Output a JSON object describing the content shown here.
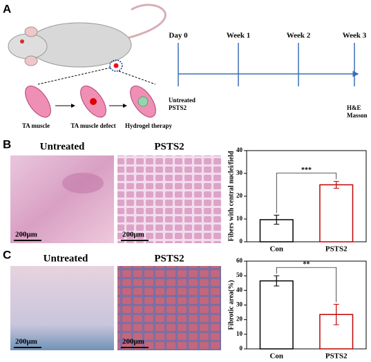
{
  "panels": {
    "a": "A",
    "b": "B",
    "c": "C"
  },
  "schematic": {
    "labels": [
      "TA muscle",
      "TA muscle defect",
      "Hydrogel therapy"
    ]
  },
  "timeline": {
    "points": [
      "Day 0",
      "Week 1",
      "Week 2",
      "Week 3"
    ],
    "start_labels": [
      "Untreated",
      "PSTS2"
    ],
    "end_labels": [
      "H&E",
      "Masson"
    ]
  },
  "images": {
    "b": [
      {
        "title": "Untreated",
        "scale": "200μm"
      },
      {
        "title": "PSTS2",
        "scale": "200μm"
      }
    ],
    "c": [
      {
        "title": "Untreated",
        "scale": "200μm"
      },
      {
        "title": "PSTS2",
        "scale": "200μm"
      }
    ]
  },
  "chart_data": [
    {
      "type": "bar",
      "y_label": "Fibers with central nuclei/field",
      "categories": [
        "Con",
        "PSTS2"
      ],
      "values": [
        9.7,
        25
      ],
      "errors": [
        2,
        1.5
      ],
      "colors": [
        "#000000",
        "#c00000"
      ],
      "ylim": [
        0,
        40
      ],
      "yticks": [
        0,
        10,
        20,
        30,
        40
      ],
      "annotation": "***"
    },
    {
      "type": "bar",
      "y_label": "Fibrotic area(%)",
      "categories": [
        "Con",
        "PSTS2"
      ],
      "values": [
        46.5,
        23.5
      ],
      "errors": [
        3.5,
        7
      ],
      "colors": [
        "#000000",
        "#c00000"
      ],
      "ylim": [
        0,
        60
      ],
      "yticks": [
        0,
        10,
        20,
        30,
        40,
        50,
        60
      ],
      "annotation": "**"
    }
  ]
}
